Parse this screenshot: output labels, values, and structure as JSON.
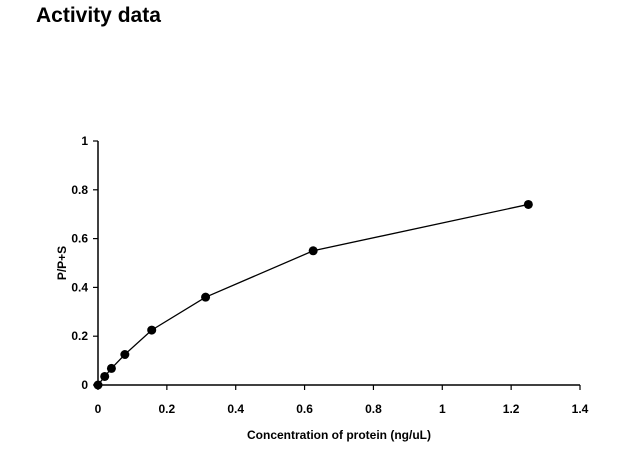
{
  "page": {
    "title": "Activity data"
  },
  "chart_data": {
    "type": "scatter",
    "title": "",
    "xlabel": "Concentration of protein (ng/uL)",
    "ylabel": "P/P+S",
    "xlim": [
      0,
      1.4
    ],
    "ylim": [
      0,
      1
    ],
    "x_ticks": [
      "0",
      "0.2",
      "0.4",
      "0.6",
      "0.8",
      "1",
      "1.2",
      "1.4"
    ],
    "y_ticks": [
      "0",
      "0.2",
      "0.4",
      "0.6",
      "0.8",
      "1"
    ],
    "grid": false,
    "legend": "none",
    "series": [
      {
        "color": "#000000",
        "marker": "circle",
        "connected": true,
        "x": [
          0,
          0.0195,
          0.039,
          0.078,
          0.156,
          0.3125,
          0.625,
          1.25
        ],
        "y": [
          0.0,
          0.035,
          0.068,
          0.125,
          0.225,
          0.36,
          0.55,
          0.74
        ]
      }
    ]
  }
}
